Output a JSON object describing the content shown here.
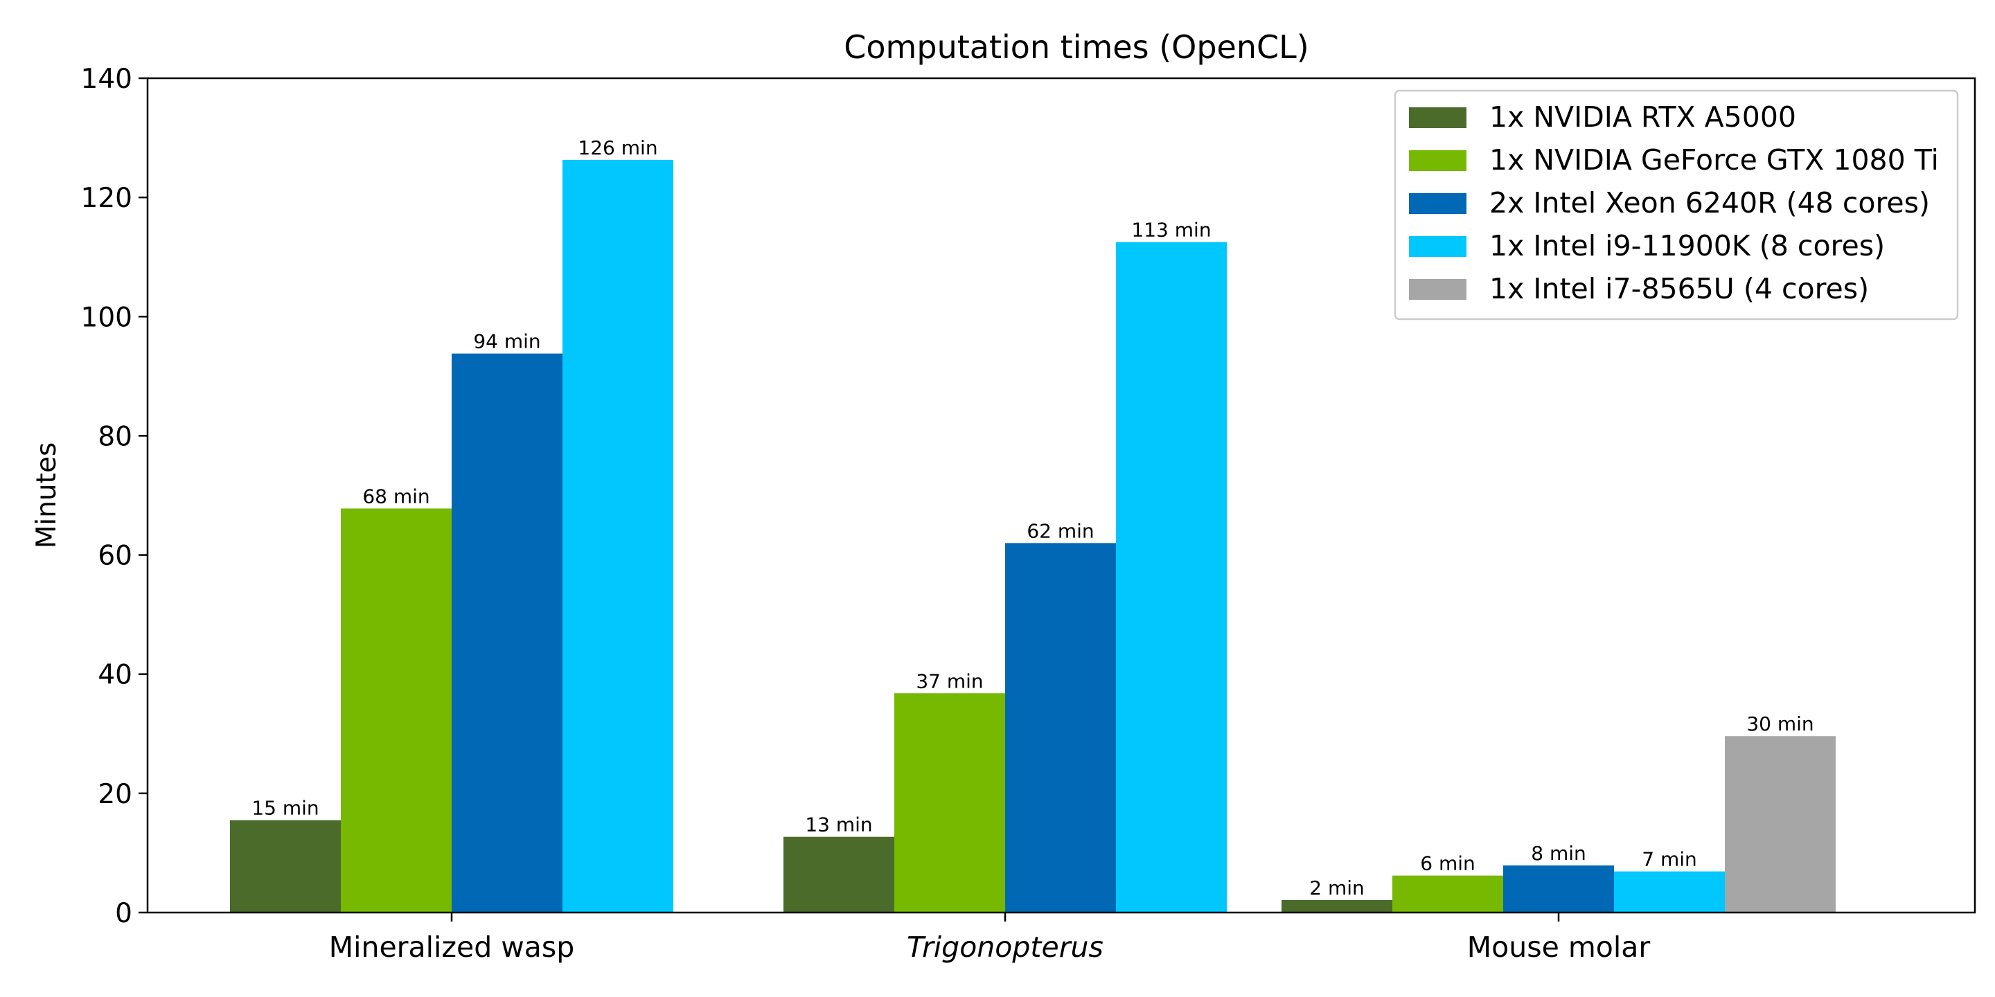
{
  "chart_data": {
    "type": "bar",
    "title": "Computation times (OpenCL)",
    "xlabel": "",
    "ylabel": "Minutes",
    "ylim": [
      0,
      140
    ],
    "yticks": [
      0,
      20,
      40,
      60,
      80,
      100,
      120,
      140
    ],
    "categories": [
      "Mineralized wasp",
      "Trigonopterus",
      "Mouse molar"
    ],
    "italic_categories": [
      "Trigonopterus"
    ],
    "legend_position": "top-right",
    "grid": false,
    "series": [
      {
        "name": "1x NVIDIA RTX A5000",
        "color": "#4a6b2a",
        "values": [
          15.5,
          12.7,
          2.1
        ],
        "labels": [
          "15 min",
          "13 min",
          "2 min"
        ]
      },
      {
        "name": "1x NVIDIA GeForce GTX 1080 Ti",
        "color": "#76b900",
        "values": [
          67.8,
          36.8,
          6.2
        ],
        "labels": [
          "68 min",
          "37 min",
          "6 min"
        ]
      },
      {
        "name": "2x Intel Xeon 6240R (48 cores)",
        "color": "#0068b5",
        "values": [
          93.8,
          62.0,
          7.9
        ],
        "labels": [
          "94 min",
          "62 min",
          "8 min"
        ]
      },
      {
        "name": "1x Intel i9-11900K (8 cores)",
        "color": "#00c7fd",
        "values": [
          126.3,
          112.5,
          6.9
        ],
        "labels": [
          "126 min",
          "113 min",
          "7 min"
        ]
      },
      {
        "name": "1x Intel i7-8565U (4 cores)",
        "color": "#a6a6a6",
        "values": [
          null,
          null,
          29.6
        ],
        "labels": [
          null,
          null,
          "30 min"
        ]
      }
    ]
  }
}
